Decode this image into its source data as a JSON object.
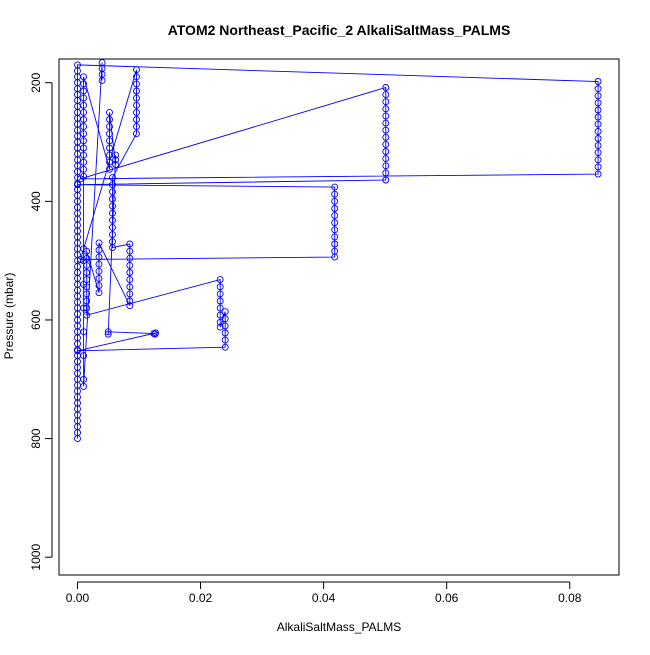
{
  "chart_data": {
    "type": "line",
    "title": "ATOM2 Northeast_Pacific_2 AlkaliSaltMass_PALMS",
    "xlabel": "AlkaliSaltMass_PALMS",
    "ylabel": "Pressure (mbar)",
    "xlim": [
      -0.003,
      0.088
    ],
    "ylim": [
      1030,
      160
    ],
    "y_axis_inverted": true,
    "grid": false,
    "legend": "none",
    "marker": "open-circle",
    "line_color": "#0000ff",
    "x_ticks": [
      0,
      0.02,
      0.04,
      0.06,
      0.08
    ],
    "x_tick_labels": [
      "0.00",
      "0.02",
      "0.04",
      "0.06",
      "0.08"
    ],
    "y_ticks": [
      200,
      400,
      600,
      800,
      1000
    ],
    "y_tick_labels": [
      "200",
      "400",
      "600",
      "800",
      "1000"
    ],
    "series": [
      {
        "points": [
          [
            0.0,
            800
          ],
          [
            0.0,
            790
          ],
          [
            0.0,
            780
          ],
          [
            0.0,
            770
          ],
          [
            0.0,
            760
          ],
          [
            0.0,
            750
          ],
          [
            0.0,
            740
          ],
          [
            0.0,
            730
          ],
          [
            0.0,
            720
          ],
          [
            0.0,
            710
          ],
          [
            0.0,
            700
          ],
          [
            0.0,
            690
          ],
          [
            0.0,
            680
          ],
          [
            0.0,
            670
          ],
          [
            0.0,
            660
          ],
          [
            0.0,
            650
          ],
          [
            0.0,
            640
          ],
          [
            0.0,
            630
          ],
          [
            0.0,
            620
          ],
          [
            0.0,
            610
          ],
          [
            0.0,
            600
          ],
          [
            0.0,
            590
          ],
          [
            0.0,
            580
          ],
          [
            0.0,
            570
          ],
          [
            0.0,
            560
          ],
          [
            0.0,
            550
          ],
          [
            0.0,
            540
          ],
          [
            0.0,
            530
          ],
          [
            0.0,
            520
          ],
          [
            0.0,
            510
          ],
          [
            0.0,
            500
          ],
          [
            0.0,
            490
          ],
          [
            0.0,
            480
          ],
          [
            0.0,
            470
          ],
          [
            0.0,
            460
          ],
          [
            0.0,
            450
          ],
          [
            0.0,
            440
          ],
          [
            0.0,
            430
          ],
          [
            0.0,
            420
          ],
          [
            0.0,
            410
          ],
          [
            0.0,
            400
          ],
          [
            0.0,
            390
          ],
          [
            0.0,
            380
          ],
          [
            0.0,
            370
          ],
          [
            0.0,
            360
          ],
          [
            0.0,
            350
          ],
          [
            0.0,
            340
          ],
          [
            0.0,
            330
          ],
          [
            0.0,
            320
          ],
          [
            0.0,
            310
          ],
          [
            0.0,
            300
          ],
          [
            0.0,
            290
          ],
          [
            0.0,
            280
          ],
          [
            0.0,
            270
          ],
          [
            0.0,
            260
          ],
          [
            0.0,
            250
          ],
          [
            0.0,
            240
          ],
          [
            0.0,
            230
          ],
          [
            0.0,
            220
          ],
          [
            0.0,
            210
          ],
          [
            0.0,
            200
          ],
          [
            0.0,
            190
          ],
          [
            0.0,
            180
          ],
          [
            0.0,
            170
          ],
          [
            0.0846,
            198
          ],
          [
            0.0846,
            210
          ],
          [
            0.0846,
            222
          ],
          [
            0.0846,
            234
          ],
          [
            0.0846,
            246
          ],
          [
            0.0846,
            258
          ],
          [
            0.0846,
            270
          ],
          [
            0.0846,
            282
          ],
          [
            0.0846,
            294
          ],
          [
            0.0846,
            306
          ],
          [
            0.0846,
            318
          ],
          [
            0.0846,
            330
          ],
          [
            0.0846,
            342
          ],
          [
            0.0846,
            354
          ],
          [
            0.0005,
            362
          ],
          [
            0.0501,
            208
          ],
          [
            0.0501,
            220
          ],
          [
            0.0501,
            232
          ],
          [
            0.0501,
            244
          ],
          [
            0.0501,
            256
          ],
          [
            0.0501,
            268
          ],
          [
            0.0501,
            280
          ],
          [
            0.0501,
            292
          ],
          [
            0.0501,
            304
          ],
          [
            0.0501,
            316
          ],
          [
            0.0501,
            328
          ],
          [
            0.0501,
            340
          ],
          [
            0.0501,
            352
          ],
          [
            0.0501,
            364
          ],
          [
            0.0,
            372
          ],
          [
            0.0418,
            376
          ],
          [
            0.0418,
            388
          ],
          [
            0.0418,
            400
          ],
          [
            0.0418,
            412
          ],
          [
            0.0418,
            424
          ],
          [
            0.0418,
            436
          ],
          [
            0.0418,
            448
          ],
          [
            0.0418,
            460
          ],
          [
            0.0418,
            472
          ],
          [
            0.0418,
            484
          ],
          [
            0.0418,
            494
          ],
          [
            0.0005,
            498
          ],
          [
            0.0096,
            178
          ],
          [
            0.0096,
            190
          ],
          [
            0.0096,
            202
          ],
          [
            0.0096,
            214
          ],
          [
            0.0096,
            226
          ],
          [
            0.0096,
            238
          ],
          [
            0.0096,
            250
          ],
          [
            0.0096,
            262
          ],
          [
            0.0096,
            274
          ],
          [
            0.0096,
            286
          ],
          [
            0.0057,
            360
          ],
          [
            0.0057,
            372
          ],
          [
            0.0057,
            384
          ],
          [
            0.0057,
            396
          ],
          [
            0.0057,
            408
          ],
          [
            0.0057,
            420
          ],
          [
            0.0057,
            432
          ],
          [
            0.0057,
            444
          ],
          [
            0.0057,
            456
          ],
          [
            0.0057,
            468
          ],
          [
            0.0057,
            478
          ],
          [
            0.0085,
            472
          ],
          [
            0.0085,
            484
          ],
          [
            0.0085,
            496
          ],
          [
            0.0085,
            508
          ],
          [
            0.0085,
            520
          ],
          [
            0.0085,
            532
          ],
          [
            0.0085,
            544
          ],
          [
            0.0085,
            556
          ],
          [
            0.0085,
            568
          ],
          [
            0.0085,
            576
          ],
          [
            0.0035,
            470
          ],
          [
            0.0035,
            482
          ],
          [
            0.0035,
            494
          ],
          [
            0.0035,
            506
          ],
          [
            0.0035,
            518
          ],
          [
            0.0035,
            530
          ],
          [
            0.0035,
            542
          ],
          [
            0.0035,
            554
          ],
          [
            0.0015,
            484
          ],
          [
            0.0015,
            496
          ],
          [
            0.0015,
            508
          ],
          [
            0.0015,
            520
          ],
          [
            0.0015,
            532
          ],
          [
            0.0015,
            544
          ],
          [
            0.0015,
            556
          ],
          [
            0.0015,
            568
          ],
          [
            0.0015,
            580
          ],
          [
            0.0015,
            592
          ],
          [
            0.0232,
            532
          ],
          [
            0.0232,
            544
          ],
          [
            0.0232,
            556
          ],
          [
            0.0232,
            568
          ],
          [
            0.0232,
            580
          ],
          [
            0.0232,
            592
          ],
          [
            0.0232,
            604
          ],
          [
            0.0232,
            612
          ],
          [
            0.024,
            586
          ],
          [
            0.024,
            598
          ],
          [
            0.024,
            610
          ],
          [
            0.024,
            622
          ],
          [
            0.024,
            634
          ],
          [
            0.024,
            646
          ],
          [
            0.0,
            652
          ],
          [
            0.0127,
            622
          ],
          [
            0.0126,
            624
          ],
          [
            0.0124,
            623
          ],
          [
            0.005,
            620
          ],
          [
            0.005,
            624
          ],
          [
            0.0062,
            322
          ],
          [
            0.0062,
            330
          ],
          [
            0.0062,
            338
          ],
          [
            0.0052,
            250
          ],
          [
            0.0052,
            262
          ],
          [
            0.0052,
            274
          ],
          [
            0.0052,
            286
          ],
          [
            0.0052,
            298
          ],
          [
            0.0052,
            310
          ],
          [
            0.0052,
            322
          ],
          [
            0.0052,
            334
          ],
          [
            0.0052,
            346
          ],
          [
            0.001,
            190
          ],
          [
            0.001,
            202
          ],
          [
            0.001,
            214
          ],
          [
            0.001,
            226
          ],
          [
            0.001,
            238
          ],
          [
            0.001,
            250
          ],
          [
            0.001,
            262
          ],
          [
            0.001,
            274
          ],
          [
            0.001,
            286
          ],
          [
            0.001,
            298
          ],
          [
            0.001,
            310
          ],
          [
            0.001,
            322
          ],
          [
            0.001,
            334
          ],
          [
            0.001,
            346
          ],
          [
            0.001,
            358
          ],
          [
            0.001,
            480
          ],
          [
            0.001,
            500
          ],
          [
            0.001,
            540
          ],
          [
            0.001,
            580
          ],
          [
            0.001,
            620
          ],
          [
            0.001,
            660
          ],
          [
            0.001,
            700
          ],
          [
            0.001,
            712
          ],
          [
            0.004,
            166
          ],
          [
            0.004,
            176
          ],
          [
            0.004,
            186
          ],
          [
            0.004,
            196
          ]
        ]
      }
    ]
  }
}
